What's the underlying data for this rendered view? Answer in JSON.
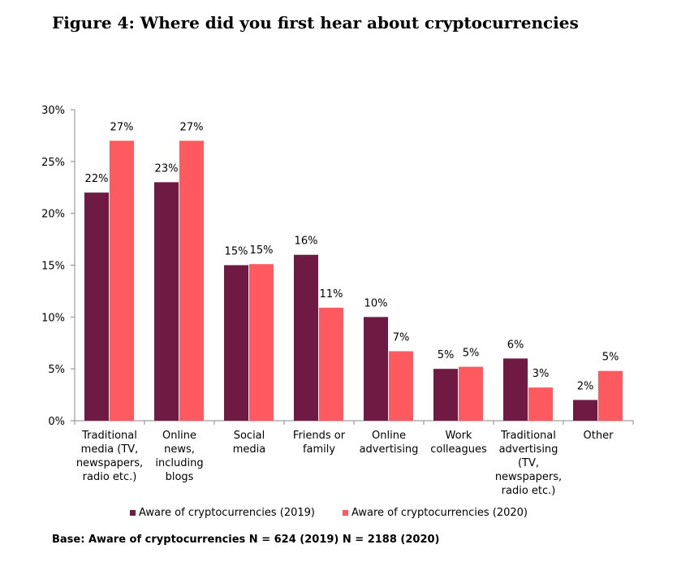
{
  "chart_data": {
    "type": "bar",
    "title": "Figure 4: Where did you first hear about cryptocurrencies",
    "categories": [
      [
        "Traditional",
        "media (TV,",
        "newspapers,",
        "radio etc.)"
      ],
      [
        "Online",
        "news,",
        "including",
        "blogs"
      ],
      [
        "Social",
        "media"
      ],
      [
        "Friends or",
        "family"
      ],
      [
        "Online",
        "advertising"
      ],
      [
        "Work",
        "colleagues"
      ],
      [
        "Traditional",
        "advertising",
        "(TV,",
        "newspapers,",
        "radio etc.)"
      ],
      [
        "Other"
      ]
    ],
    "ylim": [
      0,
      30
    ],
    "yticks": [
      "0%",
      "5%",
      "10%",
      "15%",
      "20%",
      "25%",
      "30%"
    ],
    "grid": false,
    "legend_position": "bottom",
    "series": [
      {
        "name": "Aware of cryptocurrencies (2019)",
        "color": "#6e1a42",
        "values": [
          22,
          23,
          15,
          16,
          10,
          5,
          6,
          2
        ],
        "labels": [
          "22%",
          "23%",
          "15%",
          "16%",
          "10%",
          "5%",
          "6%",
          "2%"
        ]
      },
      {
        "name": "Aware of cryptocurrencies (2020)",
        "color": "#ff5a5f",
        "values": [
          27,
          27,
          15.1,
          10.9,
          6.7,
          5.2,
          3.2,
          4.8
        ],
        "labels": [
          "27%",
          "27%",
          "15%",
          "11%",
          "7%",
          "5%",
          "3%",
          "5%"
        ]
      }
    ],
    "footnote": "Base: Aware of cryptocurrencies N = 624 (2019) N = 2188 (2020)"
  }
}
